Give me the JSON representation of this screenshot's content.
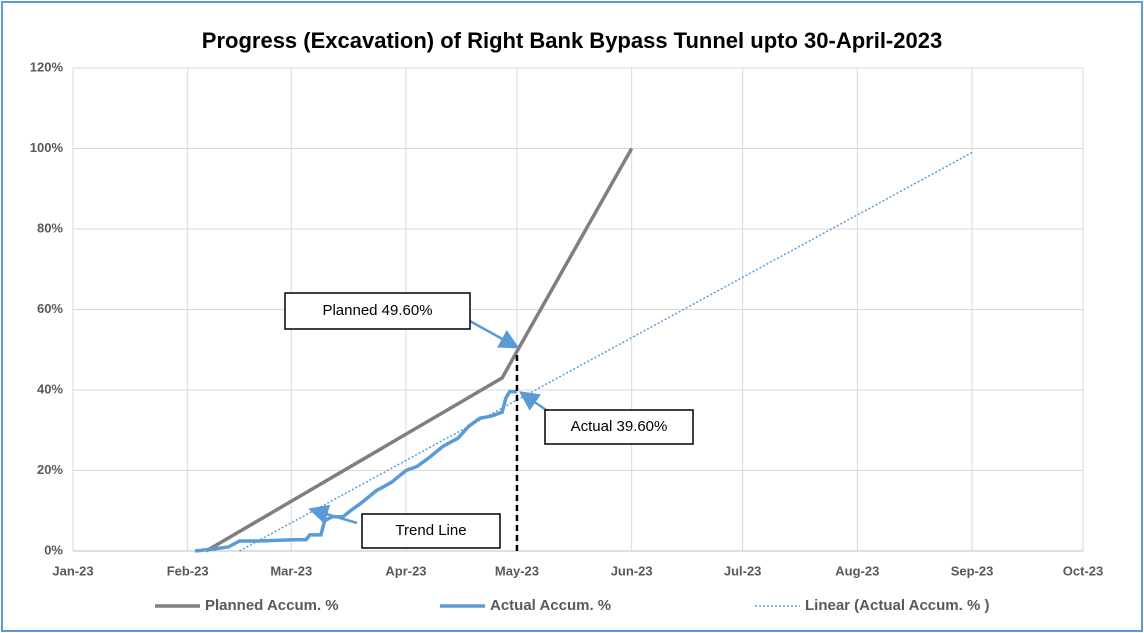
{
  "chart_data": {
    "type": "line",
    "title": "Progress (Excavation) of Right Bank Bypass Tunnel upto 30-April-2023",
    "xlim": [
      0,
      273
    ],
    "xticks": [
      {
        "value": 0,
        "label": "Jan-23"
      },
      {
        "value": 31,
        "label": "Feb-23"
      },
      {
        "value": 59,
        "label": "Mar-23"
      },
      {
        "value": 90,
        "label": "Apr-23"
      },
      {
        "value": 120,
        "label": "May-23"
      },
      {
        "value": 151,
        "label": "Jun-23"
      },
      {
        "value": 181,
        "label": "Jul-23"
      },
      {
        "value": 212,
        "label": "Aug-23"
      },
      {
        "value": 243,
        "label": "Sep-23"
      },
      {
        "value": 273,
        "label": "Oct-23"
      }
    ],
    "ylim": [
      0,
      120
    ],
    "yticks": [
      {
        "value": 0,
        "label": "0%"
      },
      {
        "value": 20,
        "label": "20%"
      },
      {
        "value": 40,
        "label": "40%"
      },
      {
        "value": 60,
        "label": "60%"
      },
      {
        "value": 80,
        "label": "80%"
      },
      {
        "value": 100,
        "label": "100%"
      },
      {
        "value": 120,
        "label": "120%"
      }
    ],
    "grid": true,
    "legend": "bottom",
    "series": [
      {
        "name": "Planned Accum. %",
        "color": "#7f7f7f",
        "style": "solid",
        "x": [
          36,
          116,
          120,
          151
        ],
        "values": [
          0,
          43,
          49.6,
          100
        ]
      },
      {
        "name": "Actual Accum. %",
        "color": "#5b9bd5",
        "style": "solid",
        "x": [
          33,
          38,
          42,
          45,
          50,
          60,
          63,
          64,
          67,
          68,
          70,
          73,
          75,
          78,
          82,
          86,
          90,
          93,
          96,
          100,
          104,
          107,
          110,
          113,
          116,
          117,
          118,
          120
        ],
        "values": [
          0,
          0.5,
          1,
          2.5,
          2.5,
          2.8,
          2.8,
          4,
          4,
          7.5,
          8.5,
          8.5,
          10,
          12,
          15,
          17,
          20,
          21,
          23,
          26,
          28,
          31,
          33,
          33.5,
          34.5,
          38,
          39.6,
          39.6
        ]
      },
      {
        "name": "Linear (Actual Accum. % )",
        "color": "#5b9bd5",
        "style": "dotted",
        "x": [
          45,
          243
        ],
        "values": [
          0,
          99
        ]
      }
    ],
    "marker_line": {
      "x": 120,
      "values": [
        0,
        49.6
      ]
    },
    "annotations": [
      {
        "text": "Planned 49.60%"
      },
      {
        "text": "Actual 39.60%"
      },
      {
        "text": "Trend Line"
      }
    ]
  }
}
